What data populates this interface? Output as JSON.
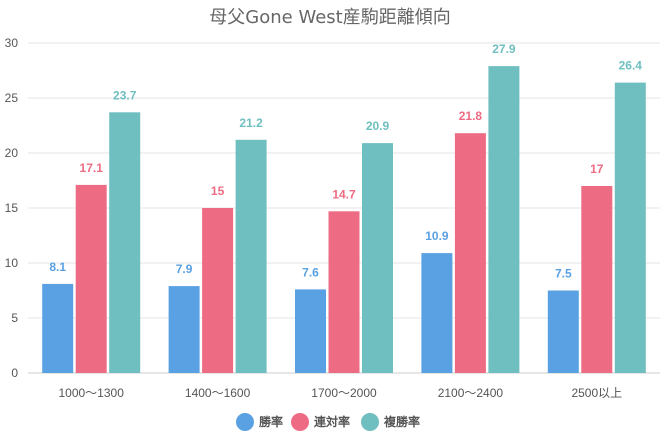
{
  "chart_data": {
    "type": "bar",
    "title": "母父Gone West産駒距離傾向",
    "categories": [
      "1000～1300",
      "1400～1600",
      "1700～2000",
      "2100～2400",
      "2500以上"
    ],
    "series": [
      {
        "name": "勝率",
        "color": "#5aa1e3",
        "values": [
          8.1,
          7.9,
          7.6,
          10.9,
          7.5
        ]
      },
      {
        "name": "連対率",
        "color": "#ee6b84",
        "values": [
          17.1,
          15,
          14.7,
          21.8,
          17
        ]
      },
      {
        "name": "複勝率",
        "color": "#6fbfc0",
        "values": [
          23.7,
          21.2,
          20.9,
          27.9,
          26.4
        ]
      }
    ],
    "ylim": [
      0,
      30
    ],
    "yticks": [
      0,
      5,
      10,
      15,
      20,
      25,
      30
    ],
    "grid": true,
    "legend_position": "bottom"
  }
}
